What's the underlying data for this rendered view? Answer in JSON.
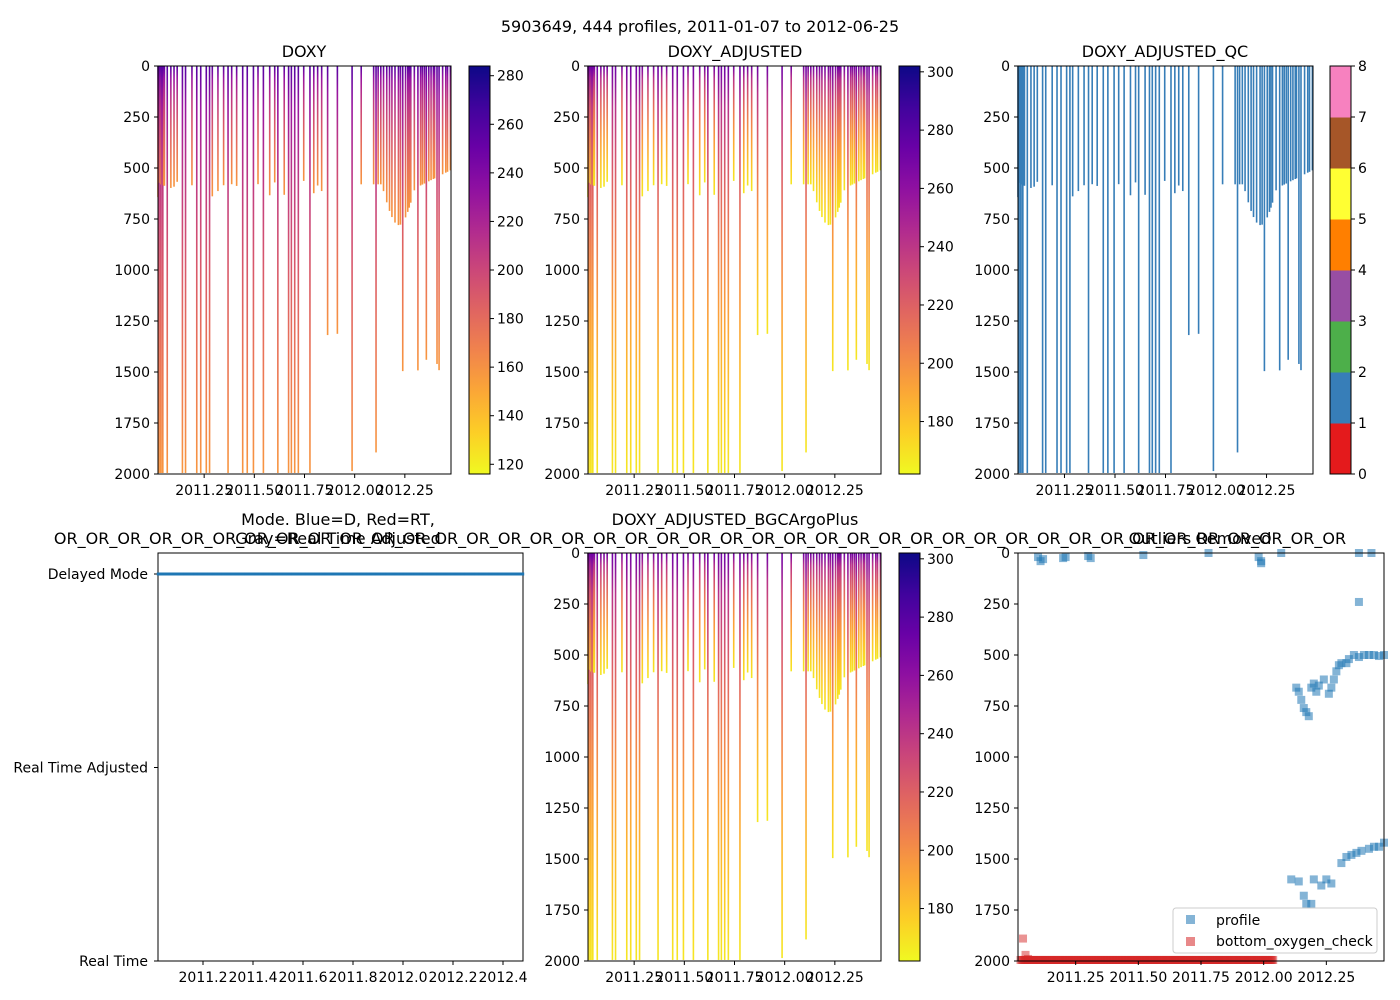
{
  "suptitle": "5903649, 444 profiles, 2011-01-07 to 2012-06-25",
  "colors": {
    "plasma": [
      "#0d0887",
      "#46039f",
      "#7201a8",
      "#9c179e",
      "#bd3786",
      "#d8576b",
      "#ed7953",
      "#fb9f3a",
      "#fdca26",
      "#f0f921"
    ],
    "qc": [
      "#e41a1c",
      "#377eb8",
      "#4daf4a",
      "#984ea3",
      "#ff7f00",
      "#ffff33",
      "#a65628",
      "#f781bf",
      "#999999"
    ],
    "profile": "#1f77b4",
    "bottom_check": "#d62728"
  },
  "chart_data": [
    {
      "type": "heatmap",
      "title": "DOXY",
      "ylim": [
        2000,
        0
      ],
      "yticks": [
        0,
        250,
        500,
        750,
        1000,
        1250,
        1500,
        1750,
        2000
      ],
      "xlim": [
        2011.02,
        2012.48
      ],
      "xticks": [
        "2011.25",
        "2011.50",
        "2011.75",
        "2012.00",
        "2012.25"
      ],
      "xtick_values": [
        2011.25,
        2011.5,
        2011.75,
        2012.0,
        2012.25
      ],
      "colorbar": {
        "min": 116,
        "max": 284,
        "ticks": [
          120,
          140,
          160,
          180,
          200,
          220,
          240,
          260,
          280
        ]
      },
      "profiles": {
        "shallow_depth": 590,
        "deep_depth": 2000,
        "deep_fraction": 0.55,
        "surface_value": 258,
        "deep_value": 158
      }
    },
    {
      "type": "heatmap",
      "title": "DOXY_ADJUSTED",
      "ylim": [
        2000,
        0
      ],
      "yticks": [
        0,
        250,
        500,
        750,
        1000,
        1250,
        1500,
        1750,
        2000
      ],
      "xlim": [
        2011.02,
        2012.48
      ],
      "xticks": [
        "2011.25",
        "2011.50",
        "2011.75",
        "2012.00",
        "2012.25"
      ],
      "xtick_values": [
        2011.25,
        2011.5,
        2011.75,
        2012.0,
        2012.25
      ],
      "colorbar": {
        "min": 162,
        "max": 302,
        "ticks": [
          180,
          200,
          220,
          240,
          260,
          280,
          300
        ]
      },
      "profiles": {
        "shallow_depth": 590,
        "deep_depth": 2000,
        "deep_fraction": 0.55,
        "surface_value": 272,
        "deep_value": 168
      }
    },
    {
      "type": "heatmap",
      "title": "DOXY_ADJUSTED_QC",
      "ylim": [
        2000,
        0
      ],
      "yticks": [
        0,
        250,
        500,
        750,
        1000,
        1250,
        1500,
        1750,
        2000
      ],
      "xlim": [
        2011.02,
        2012.48
      ],
      "xticks": [
        "2011.25",
        "2011.50",
        "2011.75",
        "2012.00",
        "2012.25"
      ],
      "xtick_values": [
        2011.25,
        2011.5,
        2011.75,
        2012.0,
        2012.25
      ],
      "colorbar": {
        "min": 0,
        "max": 8,
        "ticks": [
          0,
          1,
          2,
          3,
          4,
          5,
          6,
          7,
          8
        ],
        "categorical": true
      },
      "qc_value": 1
    },
    {
      "type": "scatter",
      "title": "Mode. Blue=D, Red=RT,",
      "title_line2": "Gray=Real Time Adjusted",
      "overlay_text": "OR_OR_OR_OR_OR_OR_OR_OR_OR_OR_OR_OR_OR_OR_OR_OR_OR_OR_OR_OR_OR_OR_OR_OR_OR_OR_OR_OR_OR_OR_OR_OR_OR_OR_OR_OR_OR_OR_OR_OR_OR",
      "categories": [
        "Delayed Mode",
        "Real Time Adjusted",
        "Real Time"
      ],
      "xlim": [
        2011.02,
        2012.48
      ],
      "xticks": [
        "2011.2",
        "2011.4",
        "2011.6",
        "2011.8",
        "2012.0",
        "2012.2",
        "2012.4"
      ],
      "xtick_values": [
        2011.2,
        2011.4,
        2011.6,
        2011.8,
        2012.0,
        2012.2,
        2012.4
      ],
      "series": [
        {
          "name": "Delayed Mode",
          "value": "Delayed Mode",
          "x_start": 2011.02,
          "x_end": 2012.48,
          "count": 444
        }
      ]
    },
    {
      "type": "heatmap",
      "title": "DOXY_ADJUSTED_BGCArgoPlus",
      "ylim": [
        2000,
        0
      ],
      "yticks": [
        0,
        250,
        500,
        750,
        1000,
        1250,
        1500,
        1750,
        2000
      ],
      "xlim": [
        2011.02,
        2012.48
      ],
      "xticks": [
        "2011.25",
        "2011.50",
        "2011.75",
        "2012.00",
        "2012.25"
      ],
      "xtick_values": [
        2011.25,
        2011.5,
        2011.75,
        2012.0,
        2012.25
      ],
      "colorbar": {
        "min": 162,
        "max": 302,
        "ticks": [
          180,
          200,
          220,
          240,
          260,
          280,
          300
        ]
      },
      "profiles": {
        "shallow_depth": 590,
        "deep_depth": 2000,
        "deep_fraction": 0.55,
        "surface_value": 272,
        "deep_value": 168
      }
    },
    {
      "type": "scatter",
      "title": "Outliers Removed",
      "ylim": [
        2000,
        0
      ],
      "yticks": [
        0,
        250,
        500,
        750,
        1000,
        1250,
        1500,
        1750,
        2000
      ],
      "xlim": [
        2011.02,
        2012.48
      ],
      "xticks": [
        "2011.25",
        "2011.50",
        "2011.75",
        "2012.00",
        "2012.25"
      ],
      "xtick_values": [
        2011.25,
        2011.5,
        2011.75,
        2012.0,
        2012.25
      ],
      "legend": "bottom-right",
      "series": [
        {
          "name": "profile",
          "points": [
            [
              2011.1,
              20
            ],
            [
              2011.11,
              40
            ],
            [
              2011.12,
              30
            ],
            [
              2011.2,
              25
            ],
            [
              2011.21,
              20
            ],
            [
              2011.3,
              15
            ],
            [
              2011.31,
              25
            ],
            [
              2011.52,
              10
            ],
            [
              2011.78,
              0
            ],
            [
              2011.98,
              20
            ],
            [
              2011.99,
              40
            ],
            [
              2011.99,
              50
            ],
            [
              2012.07,
              0
            ],
            [
              2012.38,
              0
            ],
            [
              2012.38,
              240
            ],
            [
              2012.43,
              0
            ],
            [
              2012.13,
              660
            ],
            [
              2012.14,
              680
            ],
            [
              2012.15,
              720
            ],
            [
              2012.16,
              760
            ],
            [
              2012.17,
              780
            ],
            [
              2012.18,
              800
            ],
            [
              2012.19,
              660
            ],
            [
              2012.2,
              640
            ],
            [
              2012.21,
              680
            ],
            [
              2012.22,
              650
            ],
            [
              2012.24,
              620
            ],
            [
              2012.26,
              690
            ],
            [
              2012.27,
              660
            ],
            [
              2012.28,
              620
            ],
            [
              2012.29,
              580
            ],
            [
              2012.3,
              550
            ],
            [
              2012.31,
              540
            ],
            [
              2012.33,
              540
            ],
            [
              2012.34,
              520
            ],
            [
              2012.36,
              500
            ],
            [
              2012.38,
              510
            ],
            [
              2012.4,
              500
            ],
            [
              2012.42,
              500
            ],
            [
              2012.44,
              500
            ],
            [
              2012.46,
              505
            ],
            [
              2012.48,
              500
            ],
            [
              2012.11,
              1600
            ],
            [
              2012.14,
              1610
            ],
            [
              2012.16,
              1680
            ],
            [
              2012.17,
              1720
            ],
            [
              2012.19,
              1720
            ],
            [
              2012.2,
              1600
            ],
            [
              2012.23,
              1630
            ],
            [
              2012.25,
              1600
            ],
            [
              2012.27,
              1620
            ],
            [
              2012.31,
              1520
            ],
            [
              2012.33,
              1490
            ],
            [
              2012.35,
              1480
            ],
            [
              2012.37,
              1470
            ],
            [
              2012.39,
              1460
            ],
            [
              2012.42,
              1450
            ],
            [
              2012.44,
              1440
            ],
            [
              2012.46,
              1440
            ],
            [
              2012.48,
              1420
            ]
          ]
        },
        {
          "name": "bottom_oxygen_check",
          "x_start": 2011.03,
          "x_end": 2012.04,
          "depth": 1995,
          "extras": [
            [
              2011.04,
              1890
            ],
            [
              2011.05,
              1970
            ],
            [
              2011.06,
              1990
            ]
          ]
        }
      ]
    }
  ]
}
